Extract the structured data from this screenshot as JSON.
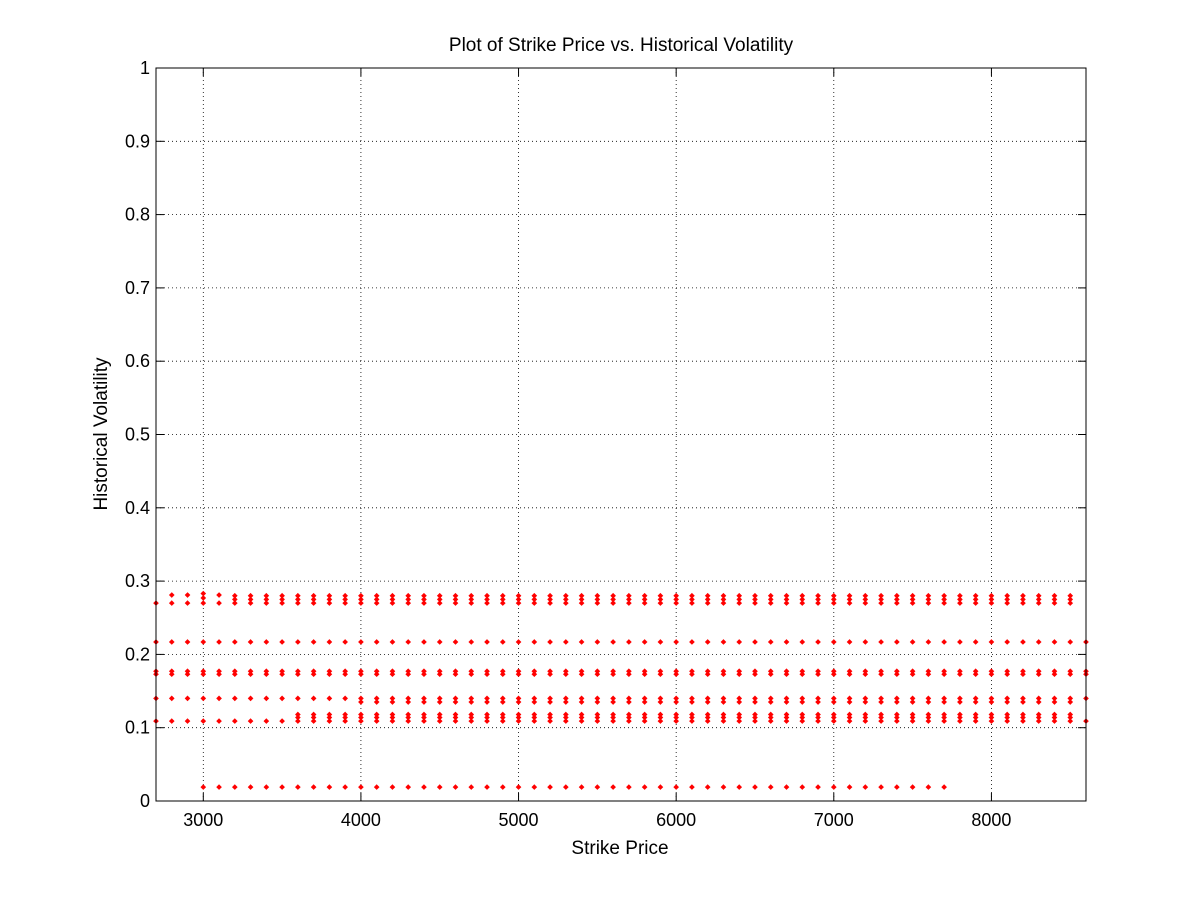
{
  "chart_data": {
    "type": "scatter",
    "title": "Plot of Strike Price vs. Historical Volatility",
    "xlabel": "Strike Price",
    "ylabel": "Historical Volatility",
    "xlim": [
      2700,
      8600
    ],
    "ylim": [
      0,
      1
    ],
    "grid": true,
    "xticks": [
      3000,
      4000,
      5000,
      6000,
      7000,
      8000
    ],
    "yticks": [
      0,
      0.1,
      0.2,
      0.3,
      0.4,
      0.5,
      0.6,
      0.7,
      0.8,
      0.9,
      1
    ],
    "ytick_labels": [
      "0",
      "0.1",
      "0.2",
      "0.3",
      "0.4",
      "0.5",
      "0.6",
      "0.7",
      "0.8",
      "0.9",
      "1"
    ],
    "marker_color": "#ff0000",
    "marker": "diamond",
    "series": [
      {
        "name": "Historical Volatility",
        "groups": [
          {
            "x_from": 2700,
            "x_to": 8600,
            "x_step": 100,
            "y": [
              0.109,
              0.14,
              0.173,
              0.177,
              0.217
            ]
          },
          {
            "x_from": 2700,
            "x_to": 2700,
            "x_step": 100,
            "y": [
              0.27
            ]
          },
          {
            "x_from": 2800,
            "x_to": 2900,
            "x_step": 100,
            "y": [
              0.27,
              0.281
            ]
          },
          {
            "x_from": 3000,
            "x_to": 3000,
            "x_step": 100,
            "y": [
              0.27,
              0.277,
              0.283
            ]
          },
          {
            "x_from": 3100,
            "x_to": 3100,
            "x_step": 100,
            "y": [
              0.27,
              0.281
            ]
          },
          {
            "x_from": 3200,
            "x_to": 8500,
            "x_step": 100,
            "y": [
              0.27,
              0.275,
              0.28
            ]
          },
          {
            "x_from": 3600,
            "x_to": 8500,
            "x_step": 100,
            "y": [
              0.114,
              0.118
            ]
          },
          {
            "x_from": 4000,
            "x_to": 8500,
            "x_step": 100,
            "y": [
              0.135
            ]
          },
          {
            "x_from": 3000,
            "x_to": 7700,
            "x_step": 100,
            "y": [
              0.019
            ]
          }
        ]
      }
    ]
  }
}
